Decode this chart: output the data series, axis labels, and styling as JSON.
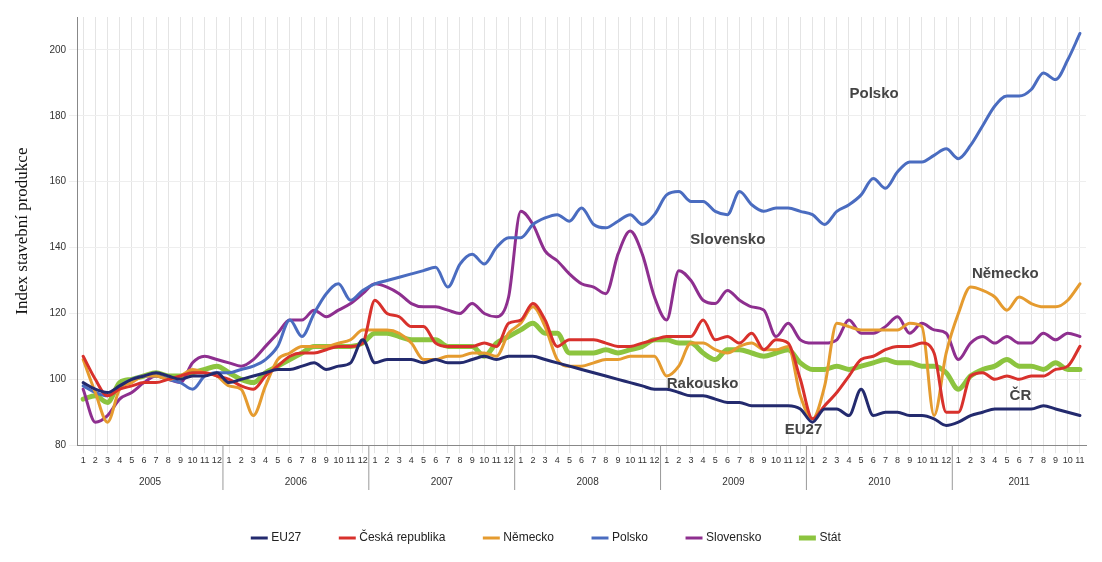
{
  "chart_data": {
    "type": "line",
    "ylabel": "Index stavební produkce",
    "legend": "bottom",
    "grid": true,
    "marker": "none",
    "line_style": "solid",
    "ylim": [
      80,
      210
    ],
    "yticks": [
      80,
      100,
      120,
      140,
      160,
      180,
      200
    ],
    "xlim": [
      "2004-12-16",
      "2011-11-16"
    ],
    "x": [
      "2005-01",
      "2005-02",
      "2005-03",
      "2005-04",
      "2005-05",
      "2005-06",
      "2005-07",
      "2005-08",
      "2005-09",
      "2005-10",
      "2005-11",
      "2005-12",
      "2006-01",
      "2006-02",
      "2006-03",
      "2006-04",
      "2006-05",
      "2006-06",
      "2006-07",
      "2006-08",
      "2006-09",
      "2006-10",
      "2006-11",
      "2006-12",
      "2007-01",
      "2007-02",
      "2007-03",
      "2007-04",
      "2007-05",
      "2007-06",
      "2007-07",
      "2007-08",
      "2007-09",
      "2007-10",
      "2007-11",
      "2007-12",
      "2008-01",
      "2008-02",
      "2008-03",
      "2008-04",
      "2008-05",
      "2008-06",
      "2008-07",
      "2008-08",
      "2008-09",
      "2008-10",
      "2008-11",
      "2008-12",
      "2009-01",
      "2009-02",
      "2009-03",
      "2009-04",
      "2009-05",
      "2009-06",
      "2009-07",
      "2009-08",
      "2009-09",
      "2009-10",
      "2009-11",
      "2009-12",
      "2010-01",
      "2010-02",
      "2010-03",
      "2010-04",
      "2010-05",
      "2010-06",
      "2010-07",
      "2010-08",
      "2010-09",
      "2010-10",
      "2010-11",
      "2010-12",
      "2011-01",
      "2011-02",
      "2011-03",
      "2011-04",
      "2011-05",
      "2011-06",
      "2011-07",
      "2011-08",
      "2011-09",
      "2011-10",
      "2011-11"
    ],
    "xticks": [
      {
        "value": "2005-01",
        "label": "1"
      },
      {
        "value": "2005-02",
        "label": "2"
      },
      {
        "value": "2005-03",
        "label": "3"
      },
      {
        "value": "2005-04",
        "label": "4"
      },
      {
        "value": "2005-05",
        "label": "5"
      },
      {
        "value": "2005-06",
        "label": "6"
      },
      {
        "value": "2005-07",
        "label": "7"
      },
      {
        "value": "2005-08",
        "label": "8"
      },
      {
        "value": "2005-09",
        "label": "9"
      },
      {
        "value": "2005-10",
        "label": "10"
      },
      {
        "value": "2005-11",
        "label": "11"
      },
      {
        "value": "2005-12",
        "label": "12"
      },
      {
        "value": "2006-01",
        "label": "1"
      },
      {
        "value": "2006-02",
        "label": "2"
      },
      {
        "value": "2006-03",
        "label": "3"
      },
      {
        "value": "2006-04",
        "label": "4"
      },
      {
        "value": "2006-05",
        "label": "5"
      },
      {
        "value": "2006-06",
        "label": "6"
      },
      {
        "value": "2006-07",
        "label": "7"
      },
      {
        "value": "2006-08",
        "label": "8"
      },
      {
        "value": "2006-09",
        "label": "9"
      },
      {
        "value": "2006-10",
        "label": "10"
      },
      {
        "value": "2006-11",
        "label": "11"
      },
      {
        "value": "2006-12",
        "label": "12"
      },
      {
        "value": "2007-01",
        "label": "1"
      },
      {
        "value": "2007-02",
        "label": "2"
      },
      {
        "value": "2007-03",
        "label": "3"
      },
      {
        "value": "2007-04",
        "label": "4"
      },
      {
        "value": "2007-05",
        "label": "5"
      },
      {
        "value": "2007-06",
        "label": "6"
      },
      {
        "value": "2007-07",
        "label": "7"
      },
      {
        "value": "2007-08",
        "label": "8"
      },
      {
        "value": "2007-09",
        "label": "9"
      },
      {
        "value": "2007-10",
        "label": "10"
      },
      {
        "value": "2007-11",
        "label": "11"
      },
      {
        "value": "2007-12",
        "label": "12"
      },
      {
        "value": "2008-01",
        "label": "1"
      },
      {
        "value": "2008-02",
        "label": "2"
      },
      {
        "value": "2008-03",
        "label": "3"
      },
      {
        "value": "2008-04",
        "label": "4"
      },
      {
        "value": "2008-05",
        "label": "5"
      },
      {
        "value": "2008-06",
        "label": "6"
      },
      {
        "value": "2008-07",
        "label": "7"
      },
      {
        "value": "2008-08",
        "label": "8"
      },
      {
        "value": "2008-09",
        "label": "9"
      },
      {
        "value": "2008-10",
        "label": "10"
      },
      {
        "value": "2008-11",
        "label": "11"
      },
      {
        "value": "2008-12",
        "label": "12"
      },
      {
        "value": "2009-01",
        "label": "1"
      },
      {
        "value": "2009-02",
        "label": "2"
      },
      {
        "value": "2009-03",
        "label": "3"
      },
      {
        "value": "2009-04",
        "label": "4"
      },
      {
        "value": "2009-05",
        "label": "5"
      },
      {
        "value": "2009-06",
        "label": "6"
      },
      {
        "value": "2009-07",
        "label": "7"
      },
      {
        "value": "2009-08",
        "label": "8"
      },
      {
        "value": "2009-09",
        "label": "9"
      },
      {
        "value": "2009-10",
        "label": "10"
      },
      {
        "value": "2009-11",
        "label": "11"
      },
      {
        "value": "2009-12",
        "label": "12"
      },
      {
        "value": "2010-01",
        "label": "1"
      },
      {
        "value": "2010-02",
        "label": "2"
      },
      {
        "value": "2010-03",
        "label": "3"
      },
      {
        "value": "2010-04",
        "label": "4"
      },
      {
        "value": "2010-05",
        "label": "5"
      },
      {
        "value": "2010-06",
        "label": "6"
      },
      {
        "value": "2010-07",
        "label": "7"
      },
      {
        "value": "2010-08",
        "label": "8"
      },
      {
        "value": "2010-09",
        "label": "9"
      },
      {
        "value": "2010-10",
        "label": "10"
      },
      {
        "value": "2010-11",
        "label": "11"
      },
      {
        "value": "2010-12",
        "label": "12"
      },
      {
        "value": "2011-01",
        "label": "1"
      },
      {
        "value": "2011-02",
        "label": "2"
      },
      {
        "value": "2011-03",
        "label": "3"
      },
      {
        "value": "2011-04",
        "label": "4"
      },
      {
        "value": "2011-05",
        "label": "5"
      },
      {
        "value": "2011-06",
        "label": "6"
      },
      {
        "value": "2011-07",
        "label": "7"
      },
      {
        "value": "2011-08",
        "label": "8"
      },
      {
        "value": "2011-09",
        "label": "9"
      },
      {
        "value": "2011-10",
        "label": "10"
      },
      {
        "value": "2011-11",
        "label": "11"
      }
    ],
    "series": [
      {
        "name": "EU27",
        "color": "#232a6e",
        "values": [
          99,
          97,
          96,
          98,
          100,
          101,
          102,
          101,
          100,
          101,
          101,
          102,
          99,
          100,
          101,
          102,
          103,
          103,
          104,
          105,
          103,
          104,
          105,
          112,
          105,
          106,
          106,
          106,
          105,
          106,
          105,
          105,
          106,
          107,
          106,
          107,
          107,
          107,
          106,
          105,
          104,
          103,
          102,
          101,
          100,
          99,
          98,
          97,
          97,
          96,
          95,
          95,
          94,
          93,
          93,
          92,
          92,
          92,
          92,
          91,
          87,
          91,
          91,
          89,
          97,
          89,
          90,
          90,
          89,
          89,
          88,
          86,
          87,
          89,
          90,
          91,
          91,
          91,
          91,
          92,
          91,
          90,
          89
        ]
      },
      {
        "name": "Česká republika",
        "color": "#d8312c",
        "values": [
          107,
          100,
          95,
          97,
          98,
          99,
          99,
          100,
          101,
          102,
          102,
          101,
          100,
          98,
          97,
          101,
          104,
          107,
          108,
          108,
          109,
          110,
          110,
          111,
          124,
          120,
          119,
          116,
          116,
          111,
          110,
          110,
          110,
          111,
          110,
          117,
          118,
          123,
          118,
          110,
          112,
          112,
          112,
          111,
          110,
          110,
          111,
          112,
          113,
          113,
          113,
          118,
          112,
          113,
          111,
          114,
          109,
          112,
          111,
          100,
          88,
          92,
          96,
          101,
          106,
          107,
          109,
          110,
          110,
          111,
          108,
          90,
          90,
          101,
          102,
          100,
          101,
          100,
          101,
          101,
          103,
          104,
          110
        ]
      },
      {
        "name": "Německo",
        "color": "#e59b2f",
        "values": [
          106,
          96,
          87,
          97,
          99,
          101,
          101,
          100,
          101,
          103,
          102,
          101,
          98,
          97,
          89,
          98,
          106,
          108,
          110,
          110,
          110,
          111,
          112,
          115,
          115,
          115,
          114,
          111,
          106,
          106,
          107,
          107,
          108,
          108,
          107,
          114,
          117,
          122,
          116,
          106,
          104,
          104,
          105,
          106,
          106,
          107,
          107,
          107,
          101,
          104,
          111,
          111,
          109,
          108,
          110,
          111,
          109,
          109,
          110,
          95,
          88,
          98,
          117,
          116,
          115,
          115,
          115,
          115,
          117,
          116,
          89,
          108,
          120,
          128,
          127,
          125,
          121,
          125,
          123,
          122,
          122,
          124,
          129
        ]
      },
      {
        "name": "Polsko",
        "color": "#4a6cc0",
        "values": [
          98,
          96,
          95,
          98,
          100,
          101,
          101,
          100,
          99,
          97,
          101,
          102,
          102,
          103,
          104,
          106,
          110,
          118,
          113,
          120,
          126,
          129,
          124,
          127,
          129,
          130,
          131,
          132,
          133,
          134,
          128,
          135,
          138,
          135,
          140,
          143,
          143,
          147,
          149,
          150,
          148,
          152,
          147,
          146,
          148,
          150,
          147,
          150,
          156,
          157,
          154,
          154,
          151,
          150,
          157,
          153,
          151,
          152,
          152,
          151,
          150,
          147,
          151,
          153,
          156,
          161,
          158,
          163,
          166,
          166,
          168,
          170,
          167,
          171,
          177,
          183,
          186,
          186,
          188,
          193,
          191,
          197,
          205
        ]
      },
      {
        "name": "Slovensko",
        "color": "#8e2f8f",
        "values": [
          97,
          87,
          89,
          94,
          96,
          99,
          101,
          100,
          99,
          105,
          107,
          106,
          105,
          104,
          106,
          110,
          114,
          118,
          118,
          121,
          119,
          121,
          123,
          126,
          129,
          128,
          126,
          123,
          122,
          122,
          121,
          120,
          123,
          120,
          119,
          125,
          151,
          147,
          139,
          136,
          132,
          129,
          128,
          126,
          138,
          145,
          138,
          125,
          118,
          133,
          130,
          124,
          123,
          127,
          124,
          122,
          121,
          113,
          117,
          112,
          111,
          111,
          112,
          118,
          114,
          114,
          116,
          119,
          114,
          117,
          115,
          114,
          106,
          111,
          113,
          111,
          113,
          111,
          111,
          114,
          112,
          114,
          113
        ]
      },
      {
        "name": "Stát",
        "color": "#8cc43f",
        "values": [
          94,
          95,
          93,
          99,
          100,
          101,
          102,
          101,
          101,
          102,
          103,
          104,
          102,
          100,
          99,
          102,
          104,
          106,
          108,
          110,
          110,
          110,
          110,
          111,
          114,
          114,
          113,
          112,
          112,
          112,
          110,
          110,
          110,
          107,
          111,
          113,
          115,
          117,
          114,
          114,
          108,
          108,
          108,
          109,
          108,
          109,
          110,
          112,
          112,
          111,
          111,
          108,
          106,
          109,
          109,
          108,
          107,
          108,
          109,
          105,
          103,
          103,
          104,
          103,
          104,
          105,
          106,
          105,
          105,
          104,
          104,
          102,
          97,
          101,
          103,
          104,
          106,
          104,
          104,
          103,
          105,
          103,
          103
        ]
      }
    ],
    "annotations": [
      "2005",
      "2006",
      "2007",
      "2008",
      "2009",
      "2010",
      "2011",
      "Polsko",
      "Slovensko",
      "Německo",
      "Rakousko",
      "ČR",
      "EU27"
    ]
  }
}
